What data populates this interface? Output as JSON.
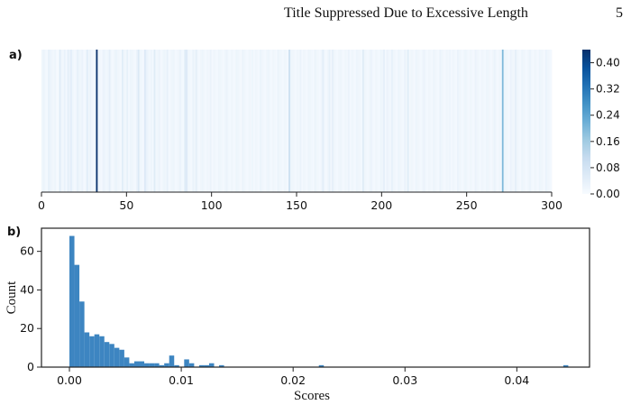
{
  "header": {
    "running_title": "Title Suppressed Due to Excessive Length",
    "page_number": "5"
  },
  "figure": {
    "panel_a_label": "a)",
    "panel_b_label": "b)"
  },
  "chart_data": [
    {
      "type": "heatmap",
      "panel": "a)",
      "x_range": [
        0,
        300
      ],
      "x_ticks": [
        "0",
        "50",
        "100",
        "150",
        "200",
        "250",
        "300"
      ],
      "colormap": "Blues",
      "colorbar": {
        "range": [
          0,
          0.44
        ],
        "ticks": [
          "0.00",
          "0.08",
          "0.16",
          "0.24",
          "0.32",
          "0.40"
        ]
      },
      "values": [
        0.004,
        0.006,
        0.003,
        0.002,
        0.008,
        0.006,
        0.004,
        0.003,
        0.005,
        0.002,
        0.001,
        0.012,
        0.004,
        0.003,
        0.007,
        0.002,
        0.009,
        0.006,
        0.01,
        0.004,
        0.002,
        0.003,
        0.008,
        0.005,
        0.004,
        0.006,
        0.002,
        0.003,
        0.011,
        0.004,
        0.006,
        0.003,
        0.002,
        0.005,
        0.44,
        0.004,
        0.003,
        0.002,
        0.006,
        0.005,
        0.003,
        0.004,
        0.009,
        0.003,
        0.002,
        0.004,
        0.006,
        0.004,
        0.003,
        0.002,
        0.011,
        0.004,
        0.003,
        0.008,
        0.002,
        0.005,
        0.004,
        0.003,
        0.002,
        0.006,
        0.014,
        0.004,
        0.003,
        0.002,
        0.013,
        0.007,
        0.004,
        0.003,
        0.005,
        0.002,
        0.012,
        0.003,
        0.004,
        0.006,
        0.002,
        0.003,
        0.005,
        0.004,
        0.008,
        0.002,
        0.003,
        0.004,
        0.005,
        0.002,
        0.003,
        0.004,
        0.006,
        0.003,
        0.002,
        0.012,
        0.013,
        0.004,
        0.003,
        0.002,
        0.006,
        0.004,
        0.009,
        0.003,
        0.002,
        0.004,
        0.005,
        0.003,
        0.002,
        0.004,
        0.003,
        0.006,
        0.002,
        0.004,
        0.003,
        0.002,
        0.005,
        0.004,
        0.003,
        0.002,
        0.004,
        0.006,
        0.003,
        0.002,
        0.004,
        0.003,
        0.002,
        0.005,
        0.004,
        0.003,
        0.002,
        0.006,
        0.004,
        0.003,
        0.002,
        0.004,
        0.003,
        0.005,
        0.002,
        0.004,
        0.003,
        0.002,
        0.006,
        0.004,
        0.003,
        0.002,
        0.004,
        0.005,
        0.003,
        0.002,
        0.004,
        0.003,
        0.002,
        0.006,
        0.004,
        0.003,
        0.002,
        0.004,
        0.003,
        0.002,
        0.022,
        0.005,
        0.004,
        0.003,
        0.002,
        0.004,
        0.003,
        0.006,
        0.002,
        0.004,
        0.003,
        0.002,
        0.005,
        0.004,
        0.003,
        0.002,
        0.006,
        0.004,
        0.003,
        0.002,
        0.004,
        0.01,
        0.003,
        0.002,
        0.004,
        0.008,
        0.003,
        0.009,
        0.004,
        0.003,
        0.002,
        0.004,
        0.005,
        0.003,
        0.002,
        0.004,
        0.003,
        0.006,
        0.002,
        0.004,
        0.003,
        0.002,
        0.005,
        0.004,
        0.003,
        0.002,
        0.012,
        0.004,
        0.003,
        0.002,
        0.004,
        0.006,
        0.003,
        0.002,
        0.004,
        0.003,
        0.002,
        0.005,
        0.004,
        0.009,
        0.002,
        0.006,
        0.004,
        0.003,
        0.008,
        0.004,
        0.003,
        0.002,
        0.005,
        0.004,
        0.003,
        0.002,
        0.006,
        0.004,
        0.011,
        0.002,
        0.004,
        0.003,
        0.002,
        0.005,
        0.004,
        0.003,
        0.002,
        0.004,
        0.006,
        0.003,
        0.002,
        0.004,
        0.003,
        0.002,
        0.005,
        0.004,
        0.003,
        0.002,
        0.006,
        0.004,
        0.003,
        0.002,
        0.004,
        0.003,
        0.005,
        0.002,
        0.004,
        0.003,
        0.002,
        0.006,
        0.004,
        0.003,
        0.002,
        0.004,
        0.005,
        0.003,
        0.002,
        0.004,
        0.003,
        0.002,
        0.006,
        0.004,
        0.003,
        0.002,
        0.004,
        0.003,
        0.002,
        0.005,
        0.004,
        0.003,
        0.002,
        0.004,
        0.006,
        0.003,
        0.002,
        0.004,
        0.003,
        0.2,
        0.005,
        0.004,
        0.003,
        0.002,
        0.006,
        0.004,
        0.003,
        0.009,
        0.004,
        0.003,
        0.002,
        0.005,
        0.004,
        0.003,
        0.002,
        0.004,
        0.006,
        0.003,
        0.002,
        0.004,
        0.003,
        0.002,
        0.005,
        0.004,
        0.003,
        0.002,
        0.006,
        0.004,
        0.003,
        0.002
      ]
    },
    {
      "type": "bar",
      "subtype": "histogram",
      "panel": "b)",
      "xlabel": "Scores",
      "ylabel": "Count",
      "xlim": [
        -0.0025,
        0.0465
      ],
      "ylim": [
        0,
        72
      ],
      "x_ticks": [
        "0.00",
        "0.01",
        "0.02",
        "0.03",
        "0.04"
      ],
      "y_ticks": [
        "0",
        "20",
        "40",
        "60"
      ],
      "bin_width": 0.000446,
      "bin_start": 0.0,
      "counts": [
        68,
        53,
        34,
        18,
        16,
        17,
        16,
        13,
        12,
        10,
        9,
        5,
        2,
        3,
        3,
        2,
        2,
        2,
        1,
        2,
        6,
        1,
        0,
        4,
        2,
        0,
        1,
        1,
        2,
        0,
        1,
        0,
        0,
        0,
        0,
        0,
        0,
        0,
        0,
        0,
        0,
        0,
        0,
        0,
        0,
        0,
        0,
        0,
        0,
        0,
        1,
        0,
        0,
        0,
        0,
        0,
        0,
        0,
        0,
        0,
        0,
        0,
        0,
        0,
        0,
        0,
        0,
        0,
        0,
        0,
        0,
        0,
        0,
        0,
        0,
        0,
        0,
        0,
        0,
        0,
        0,
        0,
        0,
        0,
        0,
        0,
        0,
        0,
        0,
        0,
        0,
        0,
        0,
        0,
        0,
        0,
        0,
        0,
        0,
        1
      ]
    }
  ]
}
